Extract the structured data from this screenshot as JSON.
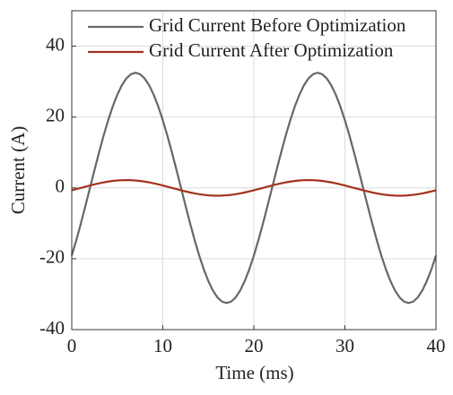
{
  "chart_data": {
    "type": "line",
    "xlabel": "Time (ms)",
    "ylabel": "Current (A)",
    "x": [
      0,
      0.5,
      1,
      1.5,
      2,
      2.5,
      3,
      3.5,
      4,
      4.5,
      5,
      5.5,
      6,
      6.5,
      7,
      7.5,
      8,
      8.5,
      9,
      9.5,
      10,
      10.5,
      11,
      11.5,
      12,
      12.5,
      13,
      13.5,
      14,
      14.5,
      15,
      15.5,
      16,
      16.5,
      17,
      17.5,
      18,
      18.5,
      19,
      19.5,
      20,
      20.5,
      21,
      21.5,
      22,
      22.5,
      23,
      23.5,
      24,
      24.5,
      25,
      25.5,
      26,
      26.5,
      27,
      27.5,
      28,
      28.5,
      29,
      29.5,
      30,
      30.5,
      31,
      31.5,
      32,
      32.5,
      33,
      33.5,
      34,
      34.5,
      35,
      35.5,
      36,
      36.5,
      37,
      37.5,
      38,
      38.5,
      39,
      39.5,
      40
    ],
    "series": [
      {
        "name": "Grid Current Before Optimization",
        "color": "#676767",
        "values": [
          -19.1,
          -14.76,
          -10.04,
          -5.08,
          0,
          5.08,
          10.04,
          14.76,
          19.1,
          22.98,
          26.29,
          28.96,
          30.91,
          32.1,
          32.5,
          32.1,
          30.91,
          28.96,
          26.29,
          22.98,
          19.1,
          14.76,
          10.04,
          5.08,
          0,
          -5.08,
          -10.04,
          -14.76,
          -19.1,
          -22.98,
          -26.29,
          -28.96,
          -30.91,
          -32.1,
          -32.5,
          -32.1,
          -30.91,
          -28.96,
          -26.29,
          -22.98,
          -19.1,
          -14.76,
          -10.04,
          -5.08,
          0,
          5.08,
          10.04,
          14.76,
          19.1,
          22.98,
          26.29,
          28.96,
          30.91,
          32.1,
          32.5,
          32.1,
          30.91,
          28.96,
          26.29,
          22.98,
          19.1,
          14.76,
          10.04,
          5.08,
          0,
          -5.08,
          -10.04,
          -14.76,
          -19.1,
          -22.98,
          -26.29,
          -28.96,
          -30.91,
          -32.1,
          -32.5,
          -32.1,
          -30.91,
          -28.96,
          -26.29,
          -22.98,
          -19.1
        ]
      },
      {
        "name": "Grid Current After Optimization",
        "color": "#a3321e",
        "values": [
          -0.68,
          -0.34,
          0,
          0.34,
          0.68,
          1.0,
          1.29,
          1.56,
          1.78,
          1.96,
          2.09,
          2.17,
          2.2,
          2.17,
          2.09,
          1.96,
          1.78,
          1.56,
          1.29,
          1.0,
          0.68,
          0.34,
          0,
          -0.34,
          -0.68,
          -1.0,
          -1.29,
          -1.56,
          -1.78,
          -1.96,
          -2.09,
          -2.17,
          -2.2,
          -2.17,
          -2.09,
          -1.96,
          -1.78,
          -1.56,
          -1.29,
          -1.0,
          -0.68,
          -0.34,
          0,
          0.34,
          0.68,
          1.0,
          1.29,
          1.56,
          1.78,
          1.96,
          2.09,
          2.17,
          2.2,
          2.17,
          2.09,
          1.96,
          1.78,
          1.56,
          1.29,
          1.0,
          0.68,
          0.34,
          0,
          -0.34,
          -0.68,
          -1.0,
          -1.29,
          -1.56,
          -1.78,
          -1.96,
          -2.09,
          -2.17,
          -2.2,
          -2.17,
          -2.09,
          -1.96,
          -1.78,
          -1.56,
          -1.29,
          -1.0,
          -0.68
        ]
      }
    ],
    "xlim": [
      0,
      40
    ],
    "xticks": [
      0,
      10,
      20,
      30,
      40
    ],
    "ylim": [
      -40,
      50
    ],
    "yticks": [
      -40,
      -20,
      0,
      20,
      40
    ],
    "grid": true,
    "legend": "top-left"
  }
}
